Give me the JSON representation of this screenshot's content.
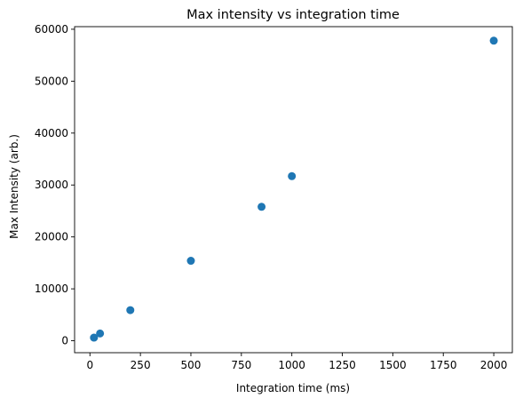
{
  "chart_data": {
    "type": "scatter",
    "title": "Max intensity vs integration time",
    "xlabel": "Integration time (ms)",
    "ylabel": "Max Intensity (arb.)",
    "xlim": [
      -76,
      2092
    ],
    "ylim": [
      -2300,
      60500
    ],
    "x_ticks": [
      0,
      250,
      500,
      750,
      1000,
      1250,
      1500,
      1750,
      2000
    ],
    "y_ticks": [
      0,
      10000,
      20000,
      30000,
      40000,
      50000,
      60000
    ],
    "grid": false,
    "legend": "none",
    "marker_color": "#1f77b4",
    "series": [
      {
        "points": [
          {
            "x": 20,
            "y": 600
          },
          {
            "x": 50,
            "y": 1400
          },
          {
            "x": 200,
            "y": 5900
          },
          {
            "x": 500,
            "y": 15400
          },
          {
            "x": 850,
            "y": 25800
          },
          {
            "x": 1000,
            "y": 31700
          },
          {
            "x": 2000,
            "y": 57800
          }
        ]
      }
    ]
  }
}
